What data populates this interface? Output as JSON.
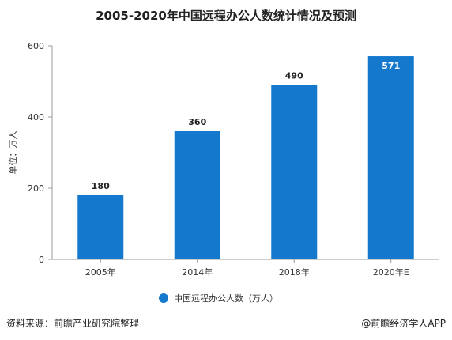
{
  "chart_data": {
    "type": "bar",
    "title": "2005-2020年中国远程办公人数统计情况及预测",
    "ylabel": "单位：万人",
    "xlabel": "",
    "categories": [
      "2005年",
      "2014年",
      "2018年",
      "2020年E"
    ],
    "series": [
      {
        "name": "中国远程办公人数（万人）",
        "values": [
          180,
          360,
          490,
          571
        ]
      }
    ],
    "ylim": [
      0,
      600
    ],
    "yticks": [
      0,
      200,
      400,
      600
    ],
    "grid": false,
    "legend": "bottom",
    "colors": {
      "bar": "#1478cd",
      "axis": "#999999",
      "text": "#333333"
    }
  },
  "footer": {
    "source": "资料来源：前瞻产业研究院整理",
    "brand": "@前瞻经济学人APP"
  }
}
